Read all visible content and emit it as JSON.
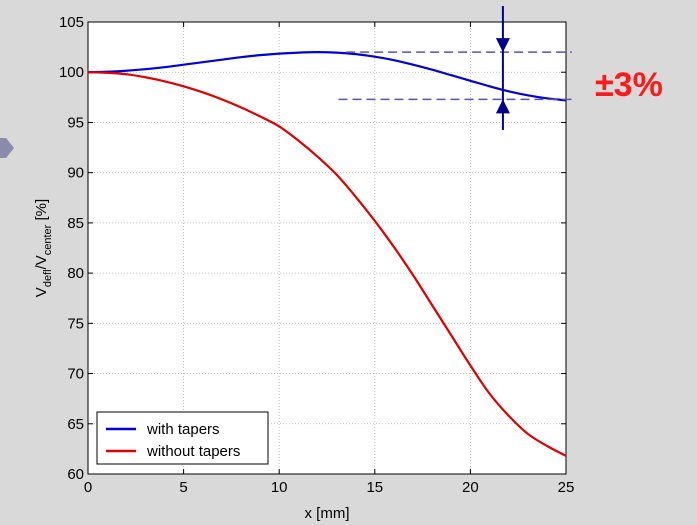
{
  "chart_data": {
    "type": "line",
    "title": "",
    "xlabel": "x [mm]",
    "ylabel": {
      "prefix": "V",
      "sub1": "defl",
      "middle": "/V",
      "sub2": "center",
      "suffix": " [%]"
    },
    "xlim": [
      0,
      25
    ],
    "ylim": [
      60,
      105
    ],
    "x_ticks": [
      0,
      5,
      10,
      15,
      20,
      25
    ],
    "y_ticks": [
      60,
      65,
      70,
      75,
      80,
      85,
      90,
      95,
      100,
      105
    ],
    "grid": true,
    "legend_position": "bottom-left",
    "series": [
      {
        "name": "with tapers",
        "color": "#0000dd",
        "x": [
          0,
          1,
          2,
          3,
          4,
          5,
          6,
          7,
          8,
          9,
          10,
          11,
          12,
          13,
          14,
          15,
          16,
          17,
          18,
          19,
          20,
          21,
          22,
          23,
          24,
          25
        ],
        "y": [
          100.0,
          100.05,
          100.15,
          100.3,
          100.5,
          100.75,
          101.0,
          101.25,
          101.5,
          101.7,
          101.85,
          101.95,
          102.0,
          101.95,
          101.8,
          101.55,
          101.2,
          100.75,
          100.25,
          99.7,
          99.15,
          98.6,
          98.1,
          97.7,
          97.4,
          97.2
        ]
      },
      {
        "name": "without tapers",
        "color": "#dd0000",
        "x": [
          0,
          1,
          2,
          3,
          4,
          5,
          6,
          7,
          8,
          9,
          10,
          11,
          12,
          13,
          14,
          15,
          16,
          17,
          18,
          19,
          20,
          21,
          22,
          23,
          24,
          25
        ],
        "y": [
          100.0,
          99.95,
          99.8,
          99.5,
          99.1,
          98.6,
          98.0,
          97.3,
          96.5,
          95.6,
          94.6,
          93.2,
          91.6,
          89.8,
          87.6,
          85.2,
          82.6,
          79.8,
          76.8,
          73.8,
          70.8,
          68.0,
          65.8,
          64.0,
          62.8,
          61.8
        ]
      }
    ],
    "annotations": {
      "tolerance_label": "±3%",
      "upper_ref_value": 102,
      "lower_ref_value": 97.3,
      "arrow_x": 21.7,
      "line_start_x": 13.5,
      "line_end_x": 25.3,
      "ref_line_color": "#5555aa",
      "arrow_color": "#00008b"
    }
  }
}
